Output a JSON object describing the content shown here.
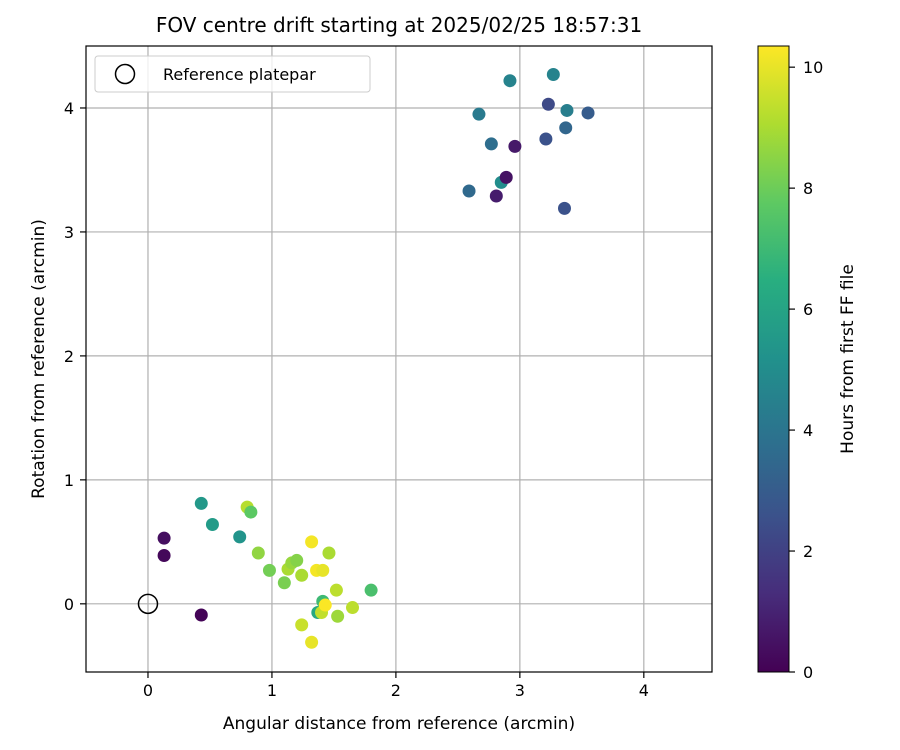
{
  "chart_data": {
    "type": "scatter",
    "title": "FOV centre drift starting at 2025/02/25 18:57:31",
    "xlabel": "Angular distance from reference (arcmin)",
    "ylabel": "Rotation from reference (arcmin)",
    "xlim": [
      -0.5,
      4.55
    ],
    "ylim": [
      -0.55,
      4.5
    ],
    "xticks": [
      "0",
      "1",
      "2",
      "3",
      "4"
    ],
    "yticks": [
      "0",
      "1",
      "2",
      "3",
      "4"
    ],
    "grid": true,
    "legend": {
      "position": "top-left",
      "label": "Reference platepar"
    },
    "reference_point": {
      "x": 0,
      "y": 0
    },
    "colorbar": {
      "label": "Hours from first FF file",
      "range": [
        0,
        10.35
      ],
      "ticks": [
        "0",
        "2",
        "4",
        "6",
        "8",
        "10"
      ],
      "colormap": "viridis"
    },
    "points": [
      {
        "x": 0.13,
        "y": 0.53,
        "c": 0.4
      },
      {
        "x": 0.13,
        "y": 0.39,
        "c": 0.2
      },
      {
        "x": 0.43,
        "y": -0.09,
        "c": 0.1
      },
      {
        "x": 0.43,
        "y": 0.81,
        "c": 5.5
      },
      {
        "x": 0.52,
        "y": 0.64,
        "c": 5.6
      },
      {
        "x": 0.74,
        "y": 0.54,
        "c": 5.3
      },
      {
        "x": 0.8,
        "y": 0.78,
        "c": 9.2
      },
      {
        "x": 0.83,
        "y": 0.74,
        "c": 7.7
      },
      {
        "x": 0.89,
        "y": 0.41,
        "c": 8.6
      },
      {
        "x": 0.98,
        "y": 0.27,
        "c": 8.1
      },
      {
        "x": 1.1,
        "y": 0.17,
        "c": 8.2
      },
      {
        "x": 1.13,
        "y": 0.28,
        "c": 9.0
      },
      {
        "x": 1.16,
        "y": 0.33,
        "c": 8.7
      },
      {
        "x": 1.2,
        "y": 0.35,
        "c": 8.4
      },
      {
        "x": 1.24,
        "y": 0.23,
        "c": 9.0
      },
      {
        "x": 1.24,
        "y": -0.17,
        "c": 9.5
      },
      {
        "x": 1.32,
        "y": 0.5,
        "c": 10.2
      },
      {
        "x": 1.32,
        "y": -0.31,
        "c": 10.0
      },
      {
        "x": 1.36,
        "y": 0.27,
        "c": 10.2
      },
      {
        "x": 1.41,
        "y": 0.27,
        "c": 10.0
      },
      {
        "x": 1.37,
        "y": -0.07,
        "c": 6.2
      },
      {
        "x": 1.4,
        "y": -0.07,
        "c": 9.4
      },
      {
        "x": 1.41,
        "y": 0.02,
        "c": 7.0
      },
      {
        "x": 1.43,
        "y": -0.01,
        "c": 10.3
      },
      {
        "x": 1.46,
        "y": 0.41,
        "c": 9.0
      },
      {
        "x": 1.52,
        "y": 0.11,
        "c": 9.3
      },
      {
        "x": 1.53,
        "y": -0.1,
        "c": 8.8
      },
      {
        "x": 1.65,
        "y": -0.03,
        "c": 9.3
      },
      {
        "x": 1.8,
        "y": 0.11,
        "c": 7.3
      },
      {
        "x": 2.59,
        "y": 3.33,
        "c": 3.5
      },
      {
        "x": 2.67,
        "y": 3.95,
        "c": 4.2
      },
      {
        "x": 2.77,
        "y": 3.71,
        "c": 3.7
      },
      {
        "x": 2.81,
        "y": 3.29,
        "c": 0.8
      },
      {
        "x": 2.85,
        "y": 3.4,
        "c": 5.0
      },
      {
        "x": 2.89,
        "y": 3.44,
        "c": 0.5
      },
      {
        "x": 2.92,
        "y": 4.22,
        "c": 4.6
      },
      {
        "x": 2.96,
        "y": 3.69,
        "c": 0.7
      },
      {
        "x": 3.21,
        "y": 3.75,
        "c": 2.6
      },
      {
        "x": 3.23,
        "y": 4.03,
        "c": 2.3
      },
      {
        "x": 3.27,
        "y": 4.27,
        "c": 4.6
      },
      {
        "x": 3.36,
        "y": 3.19,
        "c": 2.6
      },
      {
        "x": 3.37,
        "y": 3.84,
        "c": 3.4
      },
      {
        "x": 3.38,
        "y": 3.98,
        "c": 4.4
      },
      {
        "x": 3.55,
        "y": 3.96,
        "c": 3.0
      }
    ]
  }
}
